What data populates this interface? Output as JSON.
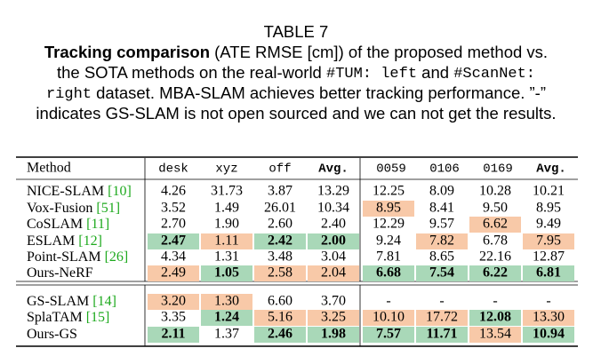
{
  "caption": {
    "label": "TABLE 7",
    "lines": [
      [
        {
          "text": "Tracking comparison",
          "font": "bold"
        },
        {
          "text": " (ATE RMSE [cm]) of the proposed method vs."
        }
      ],
      [
        {
          "text": "the SOTA methods on the real-world "
        },
        {
          "text": "#TUM: left",
          "font": "mono"
        },
        {
          "text": " and "
        },
        {
          "text": "#ScanNet:",
          "font": "mono"
        }
      ],
      [
        {
          "text": "right",
          "font": "mono"
        },
        {
          "text": " dataset. MBA-SLAM achieves better tracking performance. ”-”"
        }
      ],
      [
        {
          "text": "indicates GS-SLAM is not open sourced and we can not get the results."
        }
      ]
    ]
  },
  "table": {
    "header": [
      "Method",
      "desk",
      "xyz",
      "off",
      "Avg.",
      "0059",
      "0106",
      "0169",
      "Avg."
    ],
    "header_bold": [
      4,
      8
    ],
    "colors": {
      "best": "#a9d8b8",
      "second": "#f8c9a8",
      "cite": "#1faa1f"
    },
    "groups": [
      [
        {
          "method": "NICE-SLAM",
          "cite": "[10]",
          "cells": [
            "4.26",
            "31.73",
            "3.87",
            "13.29",
            "12.25",
            "8.09",
            "10.28",
            "10.21"
          ],
          "best": [],
          "second": []
        },
        {
          "method": "Vox-Fusion",
          "cite": "[51]",
          "cells": [
            "3.52",
            "1.49",
            "26.01",
            "10.34",
            "8.95",
            "8.41",
            "9.50",
            "8.95"
          ],
          "best": [],
          "second": [
            4
          ]
        },
        {
          "method": "CoSLAM",
          "cite": "[11]",
          "cells": [
            "2.70",
            "1.90",
            "2.60",
            "2.40",
            "12.29",
            "9.57",
            "6.62",
            "9.49"
          ],
          "best": [],
          "second": [
            6
          ]
        },
        {
          "method": "ESLAM",
          "cite": "[12]",
          "cells": [
            "2.47",
            "1.11",
            "2.42",
            "2.00",
            "9.24",
            "7.82",
            "6.78",
            "7.95"
          ],
          "best": [
            0,
            2,
            3
          ],
          "second": [
            1,
            5,
            7
          ]
        },
        {
          "method": "Point-SLAM",
          "cite": "[26]",
          "cells": [
            "4.34",
            "1.31",
            "3.48",
            "3.04",
            "7.81",
            "8.65",
            "22.16",
            "12.87"
          ],
          "best": [],
          "second": []
        },
        {
          "method": "Ours-NeRF",
          "cells": [
            "2.49",
            "1.05",
            "2.58",
            "2.04",
            "6.68",
            "7.54",
            "6.22",
            "6.81"
          ],
          "best": [
            1,
            4,
            5,
            6,
            7
          ],
          "second": [
            0,
            2,
            3
          ]
        }
      ],
      [
        {
          "method": "GS-SLAM",
          "cite": "[14]",
          "cells": [
            "3.20",
            "1.30",
            "6.60",
            "3.70",
            "-",
            "-",
            "-",
            "-"
          ],
          "best": [],
          "second": [
            0,
            1
          ]
        },
        {
          "method": "SplaTAM",
          "cite": "[15]",
          "cells": [
            "3.35",
            "1.24",
            "5.16",
            "3.25",
            "10.10",
            "17.72",
            "12.08",
            "13.30"
          ],
          "best": [
            1,
            6
          ],
          "second": [
            2,
            3,
            4,
            5,
            7
          ]
        },
        {
          "method": "Ours-GS",
          "cells": [
            "2.11",
            "1.37",
            "2.46",
            "1.98",
            "7.57",
            "11.71",
            "13.54",
            "10.94"
          ],
          "best": [
            0,
            2,
            3,
            4,
            5,
            7
          ],
          "second": [
            6
          ]
        }
      ]
    ]
  }
}
